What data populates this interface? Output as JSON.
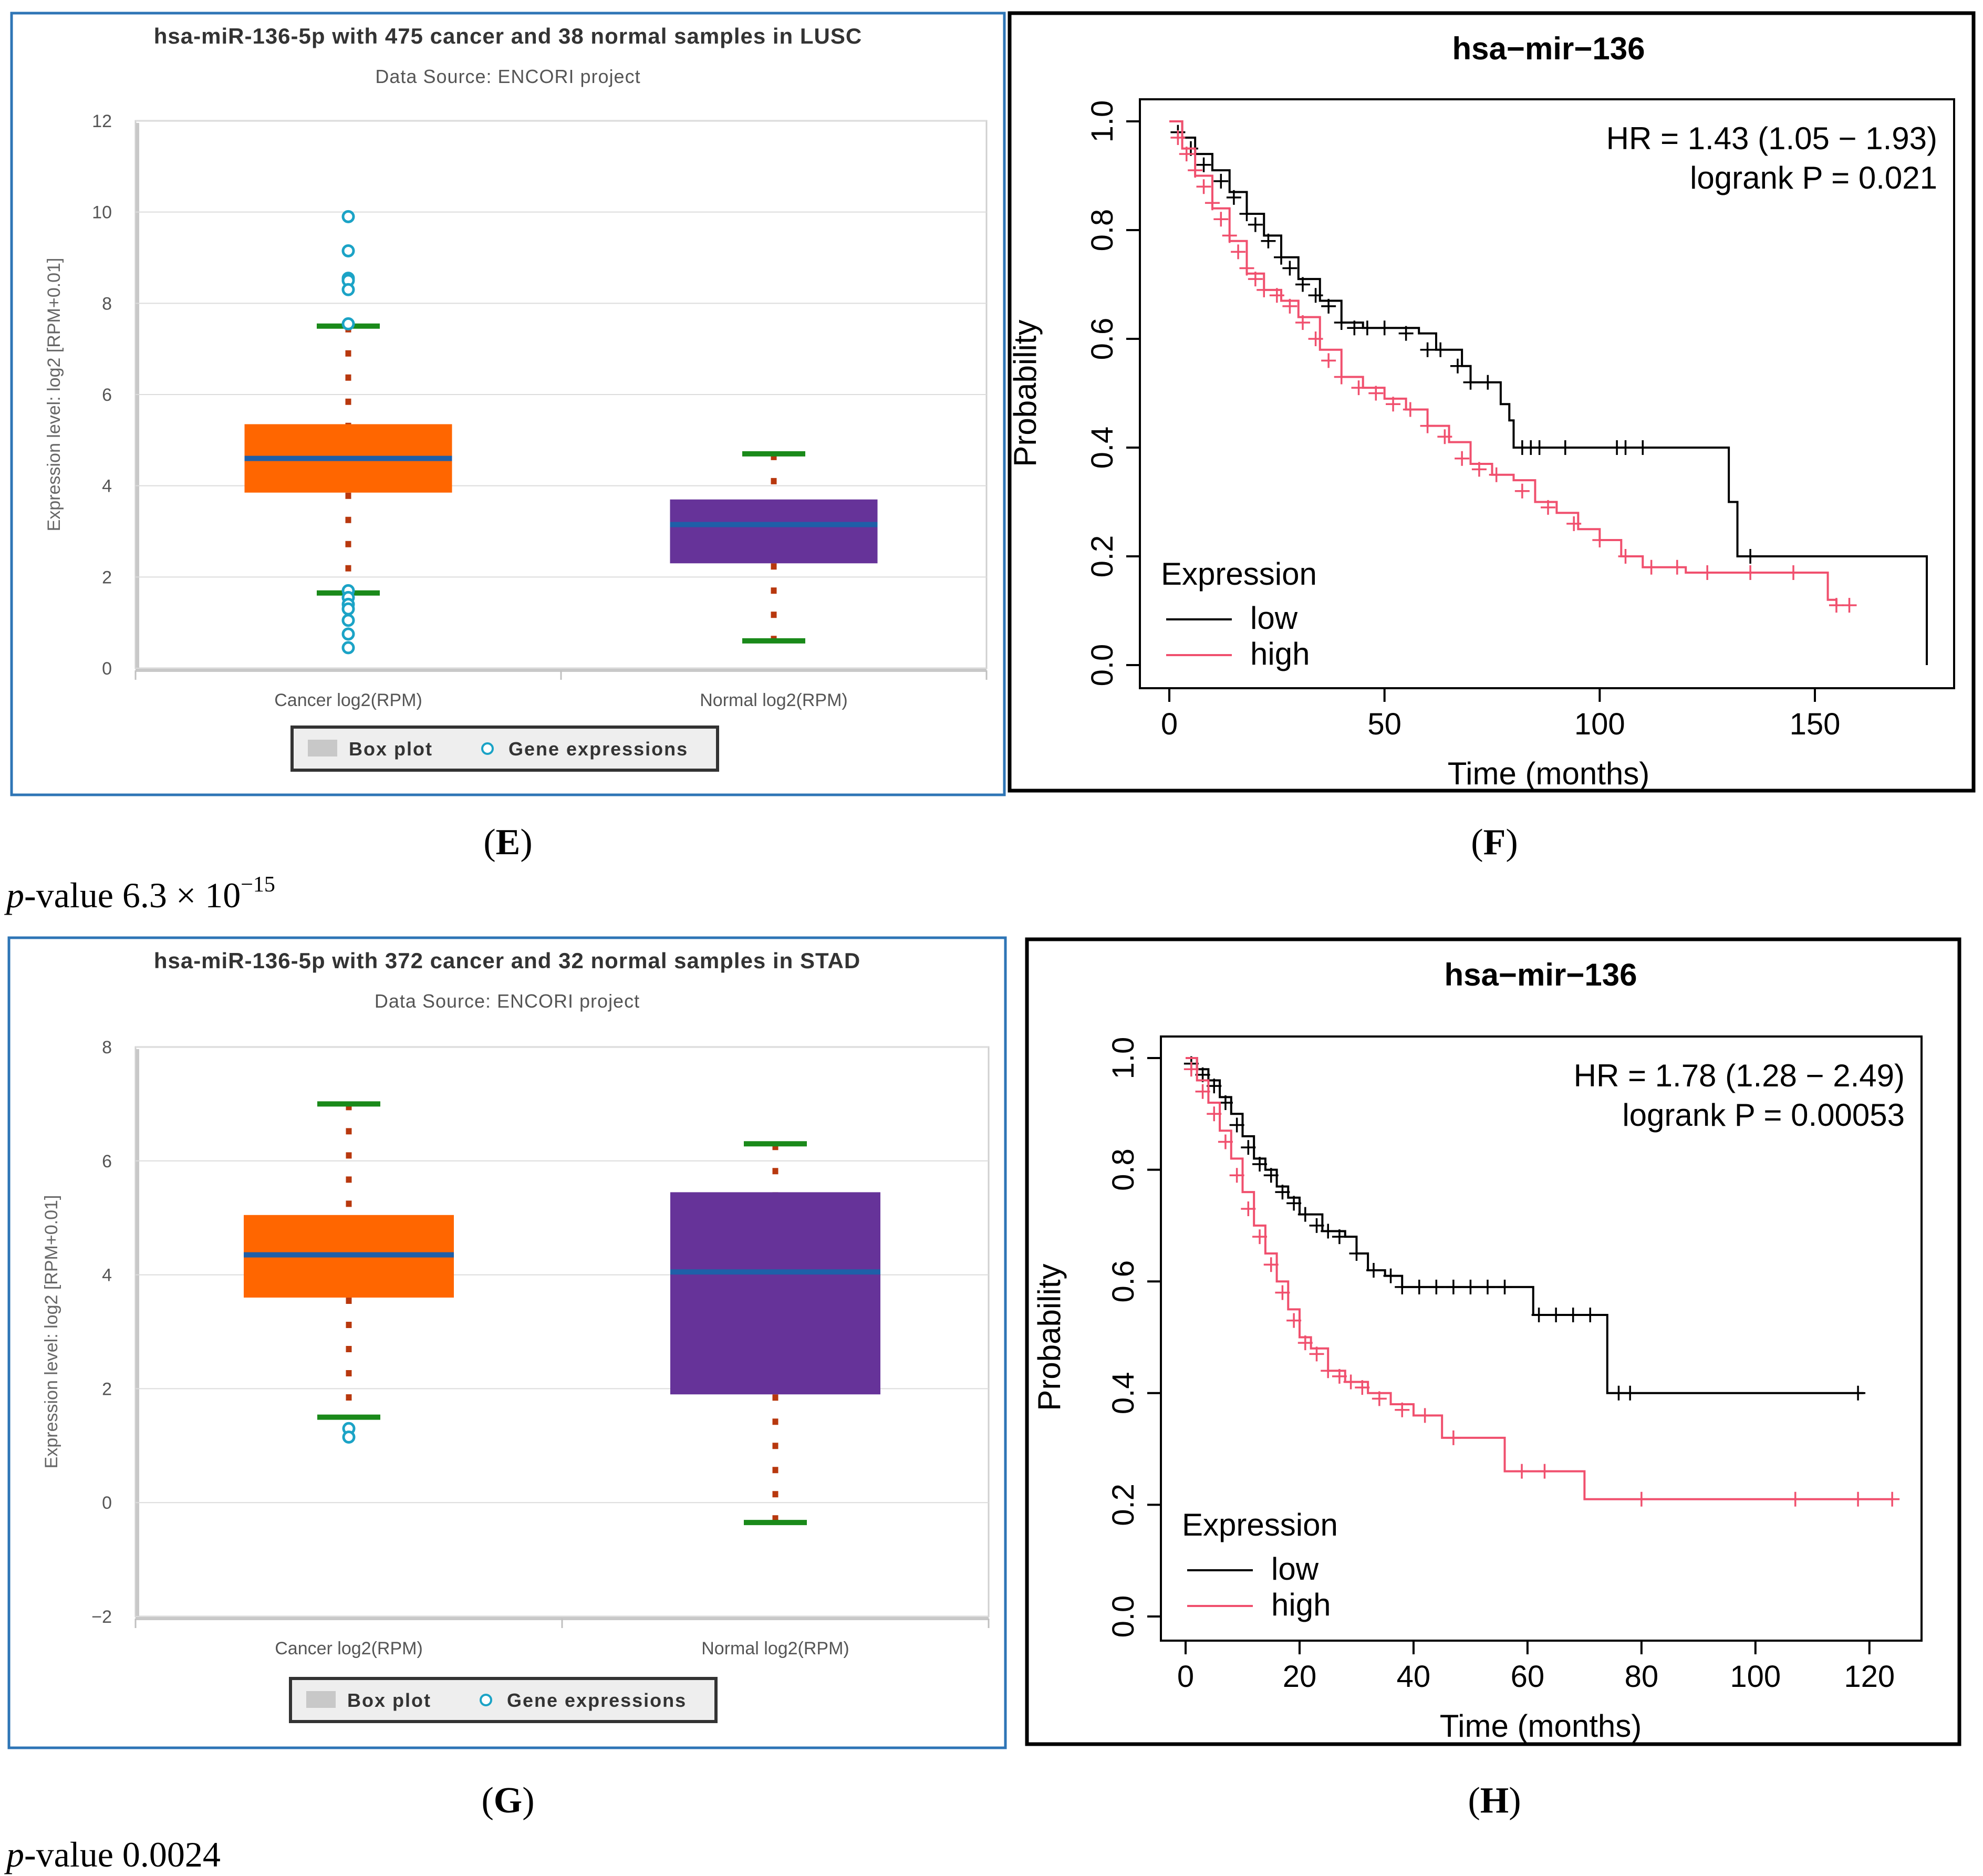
{
  "panels": {
    "E": {
      "label": "E",
      "pvalue_prefix": "p",
      "pvalue_text": "-value 6.3 × 10",
      "pvalue_exp": "−15"
    },
    "F": {
      "label": "F"
    },
    "G": {
      "label": "G",
      "pvalue_prefix": "p",
      "pvalue_text": "-value 0.0024"
    },
    "H": {
      "label": "H"
    }
  },
  "legend_box": {
    "box_plot": "Box plot",
    "gene_expressions": "Gene expressions"
  },
  "colors": {
    "cancer_box": "#ff6600",
    "normal_box": "#663399",
    "median": "#1f5fa8",
    "whisker_cap": "#1a8a1a",
    "whisker_dots": "#b8380e",
    "outlier": "#1ba3c6",
    "km_low": "#000000",
    "km_high": "#f0506e",
    "box_frame": "#2e75b6"
  },
  "chart_data": [
    {
      "id": "E",
      "type": "box",
      "title": "hsa-miR-136-5p with 475 cancer and 38 normal samples in LUSC",
      "subtitle": "Data Source: ENCORI project",
      "ylabel": "Expression level: log2 [RPM+0.01]",
      "ylim": [
        0,
        12
      ],
      "yticks": [
        0,
        2,
        4,
        6,
        8,
        10,
        12
      ],
      "categories": [
        "Cancer log2(RPM)",
        "Normal log2(RPM)"
      ],
      "boxes": [
        {
          "name": "Cancer",
          "min": 1.65,
          "q1": 3.85,
          "median": 4.6,
          "q3": 5.35,
          "max": 7.5,
          "outliers": [
            9.9,
            9.15,
            8.55,
            8.5,
            8.3,
            7.55,
            1.7,
            1.55,
            1.4,
            1.3,
            1.05,
            0.75,
            0.45
          ]
        },
        {
          "name": "Normal",
          "min": 0.6,
          "q1": 2.3,
          "median": 3.15,
          "q3": 3.7,
          "max": 4.7,
          "outliers": []
        }
      ]
    },
    {
      "id": "F",
      "type": "line",
      "title": "hsa−mir−136",
      "xlabel": "Time (months)",
      "ylabel": "Probability",
      "xlim": [
        0,
        176
      ],
      "ylim": [
        0,
        1
      ],
      "xticks": [
        0,
        50,
        100,
        150
      ],
      "yticks": [
        "0.0",
        "0.2",
        "0.4",
        "0.6",
        "0.8",
        "1.0"
      ],
      "hr_text": "HR = 1.43 (1.05 − 1.93)",
      "logrank_text": "logrank P = 0.021",
      "legend_title": "Expression",
      "series": [
        {
          "name": "low",
          "x": [
            0,
            3,
            6,
            10,
            14,
            18,
            22,
            26,
            30,
            35,
            40,
            45,
            50,
            58,
            62,
            65,
            68,
            70,
            75,
            77,
            79,
            80,
            128,
            130,
            132,
            176,
            176
          ],
          "y": [
            1.0,
            0.97,
            0.94,
            0.91,
            0.87,
            0.83,
            0.79,
            0.75,
            0.71,
            0.67,
            0.63,
            0.62,
            0.62,
            0.61,
            0.58,
            0.58,
            0.55,
            0.52,
            0.52,
            0.48,
            0.45,
            0.4,
            0.4,
            0.3,
            0.2,
            0.2,
            0.0
          ],
          "censors": [
            [
              2,
              0.98
            ],
            [
              5,
              0.95
            ],
            [
              8,
              0.92
            ],
            [
              12,
              0.89
            ],
            [
              15,
              0.86
            ],
            [
              18,
              0.83
            ],
            [
              20,
              0.81
            ],
            [
              23,
              0.78
            ],
            [
              26,
              0.75
            ],
            [
              28,
              0.73
            ],
            [
              31,
              0.7
            ],
            [
              34,
              0.68
            ],
            [
              37,
              0.66
            ],
            [
              40,
              0.63
            ],
            [
              43,
              0.62
            ],
            [
              46,
              0.62
            ],
            [
              50,
              0.62
            ],
            [
              55,
              0.61
            ],
            [
              60,
              0.58
            ],
            [
              63,
              0.58
            ],
            [
              67,
              0.55
            ],
            [
              70,
              0.52
            ],
            [
              74,
              0.52
            ],
            [
              82,
              0.4
            ],
            [
              84,
              0.4
            ],
            [
              86,
              0.4
            ],
            [
              92,
              0.4
            ],
            [
              104,
              0.4
            ],
            [
              106,
              0.4
            ],
            [
              110,
              0.4
            ],
            [
              135,
              0.2
            ]
          ]
        },
        {
          "name": "high",
          "x": [
            0,
            3,
            6,
            10,
            14,
            18,
            22,
            26,
            30,
            35,
            40,
            45,
            50,
            55,
            60,
            65,
            70,
            75,
            80,
            85,
            90,
            95,
            100,
            105,
            110,
            115,
            120,
            125,
            130,
            153,
            155
          ],
          "y": [
            1.0,
            0.95,
            0.9,
            0.84,
            0.78,
            0.72,
            0.69,
            0.67,
            0.64,
            0.58,
            0.53,
            0.51,
            0.49,
            0.47,
            0.44,
            0.41,
            0.37,
            0.35,
            0.34,
            0.3,
            0.28,
            0.25,
            0.23,
            0.2,
            0.18,
            0.18,
            0.17,
            0.17,
            0.17,
            0.12,
            0.11
          ],
          "censors": [
            [
              2,
              0.97
            ],
            [
              4,
              0.94
            ],
            [
              6,
              0.91
            ],
            [
              8,
              0.88
            ],
            [
              10,
              0.85
            ],
            [
              12,
              0.82
            ],
            [
              14,
              0.79
            ],
            [
              16,
              0.76
            ],
            [
              18,
              0.73
            ],
            [
              20,
              0.71
            ],
            [
              22,
              0.69
            ],
            [
              25,
              0.68
            ],
            [
              28,
              0.66
            ],
            [
              31,
              0.63
            ],
            [
              34,
              0.6
            ],
            [
              37,
              0.56
            ],
            [
              40,
              0.53
            ],
            [
              44,
              0.51
            ],
            [
              48,
              0.5
            ],
            [
              52,
              0.48
            ],
            [
              56,
              0.47
            ],
            [
              60,
              0.44
            ],
            [
              64,
              0.42
            ],
            [
              68,
              0.38
            ],
            [
              72,
              0.36
            ],
            [
              76,
              0.35
            ],
            [
              82,
              0.32
            ],
            [
              88,
              0.29
            ],
            [
              94,
              0.26
            ],
            [
              100,
              0.23
            ],
            [
              106,
              0.2
            ],
            [
              112,
              0.18
            ],
            [
              118,
              0.18
            ],
            [
              125,
              0.17
            ],
            [
              135,
              0.17
            ],
            [
              145,
              0.17
            ],
            [
              155,
              0.11
            ],
            [
              158,
              0.11
            ]
          ]
        }
      ]
    },
    {
      "id": "G",
      "type": "box",
      "title": "hsa-miR-136-5p with 372 cancer and 32 normal samples in STAD",
      "subtitle": "Data Source: ENCORI project",
      "ylabel": "Expression level: log2 [RPM+0.01]",
      "ylim": [
        -2,
        8
      ],
      "yticks": [
        -2,
        0,
        2,
        4,
        6,
        8
      ],
      "categories": [
        "Cancer log2(RPM)",
        "Normal log2(RPM)"
      ],
      "boxes": [
        {
          "name": "Cancer",
          "min": 1.5,
          "q1": 3.6,
          "median": 4.35,
          "q3": 5.05,
          "max": 7.0,
          "outliers": [
            1.3,
            1.15
          ]
        },
        {
          "name": "Normal",
          "min": -0.35,
          "q1": 1.9,
          "median": 4.05,
          "q3": 5.45,
          "max": 6.3,
          "outliers": []
        }
      ]
    },
    {
      "id": "H",
      "type": "line",
      "title": "hsa−mir−136",
      "xlabel": "Time (months)",
      "ylabel": "Probability",
      "xlim": [
        0,
        125
      ],
      "ylim": [
        0,
        1
      ],
      "xticks": [
        0,
        20,
        40,
        60,
        80,
        100,
        120
      ],
      "yticks": [
        "0.0",
        "0.2",
        "0.4",
        "0.6",
        "0.8",
        "1.0"
      ],
      "hr_text": "HR = 1.78 (1.28 − 2.49)",
      "logrank_text": "logrank P = 0.00053",
      "legend_title": "Expression",
      "series": [
        {
          "name": "low",
          "x": [
            0,
            2,
            4,
            6,
            8,
            10,
            12,
            14,
            16,
            18,
            20,
            24,
            28,
            30,
            32,
            35,
            38,
            60,
            61,
            73,
            74,
            119
          ],
          "y": [
            1.0,
            0.98,
            0.96,
            0.93,
            0.9,
            0.86,
            0.82,
            0.8,
            0.77,
            0.75,
            0.72,
            0.69,
            0.68,
            0.65,
            0.62,
            0.61,
            0.59,
            0.59,
            0.54,
            0.54,
            0.4,
            0.4
          ],
          "censors": [
            [
              1,
              0.99
            ],
            [
              3,
              0.97
            ],
            [
              5,
              0.95
            ],
            [
              7,
              0.92
            ],
            [
              9,
              0.88
            ],
            [
              11,
              0.84
            ],
            [
              13,
              0.81
            ],
            [
              15,
              0.79
            ],
            [
              17,
              0.76
            ],
            [
              19,
              0.74
            ],
            [
              21,
              0.72
            ],
            [
              23,
              0.7
            ],
            [
              25,
              0.69
            ],
            [
              27,
              0.68
            ],
            [
              30,
              0.65
            ],
            [
              33,
              0.62
            ],
            [
              36,
              0.61
            ],
            [
              38,
              0.59
            ],
            [
              41,
              0.59
            ],
            [
              44,
              0.59
            ],
            [
              47,
              0.59
            ],
            [
              50,
              0.59
            ],
            [
              53,
              0.59
            ],
            [
              56,
              0.59
            ],
            [
              62,
              0.54
            ],
            [
              65,
              0.54
            ],
            [
              68,
              0.54
            ],
            [
              71,
              0.54
            ],
            [
              76,
              0.4
            ],
            [
              78,
              0.4
            ],
            [
              118,
              0.4
            ]
          ]
        },
        {
          "name": "high",
          "x": [
            0,
            2,
            4,
            6,
            8,
            10,
            12,
            14,
            16,
            18,
            20,
            22,
            25,
            28,
            32,
            36,
            40,
            45,
            50,
            56,
            57,
            70,
            124
          ],
          "y": [
            1.0,
            0.96,
            0.92,
            0.87,
            0.82,
            0.76,
            0.7,
            0.65,
            0.6,
            0.55,
            0.5,
            0.48,
            0.44,
            0.42,
            0.4,
            0.38,
            0.36,
            0.32,
            0.32,
            0.26,
            0.26,
            0.21,
            0.21
          ],
          "censors": [
            [
              1,
              0.98
            ],
            [
              3,
              0.94
            ],
            [
              5,
              0.9
            ],
            [
              7,
              0.85
            ],
            [
              9,
              0.79
            ],
            [
              11,
              0.73
            ],
            [
              13,
              0.68
            ],
            [
              15,
              0.63
            ],
            [
              17,
              0.58
            ],
            [
              19,
              0.53
            ],
            [
              21,
              0.49
            ],
            [
              23,
              0.47
            ],
            [
              25,
              0.44
            ],
            [
              27,
              0.43
            ],
            [
              29,
              0.42
            ],
            [
              31,
              0.41
            ],
            [
              34,
              0.39
            ],
            [
              38,
              0.37
            ],
            [
              42,
              0.36
            ],
            [
              47,
              0.32
            ],
            [
              59,
              0.26
            ],
            [
              63,
              0.26
            ],
            [
              80,
              0.21
            ],
            [
              107,
              0.21
            ],
            [
              118,
              0.21
            ],
            [
              124,
              0.21
            ]
          ]
        }
      ]
    }
  ]
}
